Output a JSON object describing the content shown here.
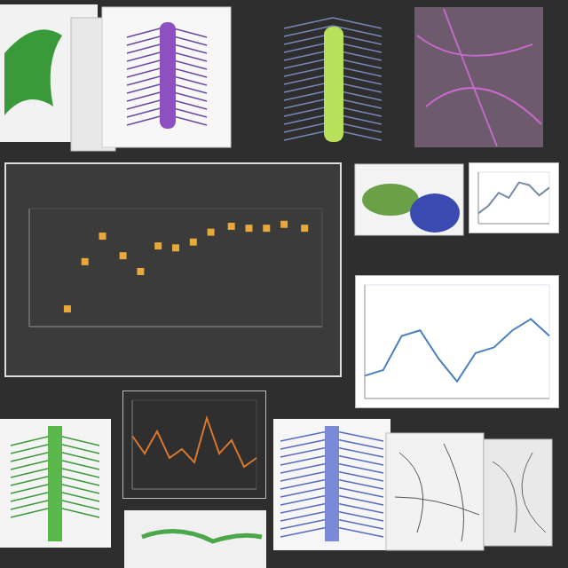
{
  "chart_data": [
    {
      "type": "scatter",
      "x": [
        13,
        19,
        25,
        32,
        38,
        44,
        50,
        56,
        62,
        69,
        75,
        81,
        87,
        94
      ],
      "values": [
        9,
        33,
        46,
        36,
        28,
        41,
        40,
        43,
        48,
        51,
        50,
        50,
        52,
        50
      ],
      "xlim": [
        0,
        100
      ],
      "ylim": [
        0,
        60
      ],
      "xticks": [
        0,
        20,
        40,
        60,
        80,
        100
      ],
      "yticks": [
        0,
        10,
        20,
        30,
        40,
        50,
        60
      ],
      "color": "#e8a93a",
      "grid": true,
      "tick_labels": false
    },
    {
      "type": "line",
      "categories": [
        null,
        null,
        null,
        null,
        null,
        null,
        null,
        null
      ],
      "values": [
        20,
        35,
        60,
        50,
        80,
        75,
        55,
        70
      ],
      "ylim": [
        0,
        100
      ],
      "yticks": [
        0,
        25,
        50,
        75,
        100
      ],
      "color": "#7a8ba8",
      "grid": true,
      "tick_labels": false
    },
    {
      "type": "line",
      "categories": [
        null,
        null,
        null,
        null,
        null,
        null,
        null,
        null,
        null,
        null,
        null
      ],
      "values": [
        20,
        25,
        55,
        60,
        35,
        15,
        40,
        45,
        60,
        70,
        55
      ],
      "ylim": [
        0,
        100
      ],
      "yticks": [
        0,
        20,
        40,
        60,
        80,
        100
      ],
      "color": "#4a7fc0",
      "grid": true,
      "tick_labels": false
    },
    {
      "type": "line",
      "categories": [
        null,
        null,
        null,
        null,
        null,
        null,
        null,
        null,
        null,
        null,
        null
      ],
      "values": [
        60,
        40,
        65,
        35,
        45,
        30,
        80,
        40,
        55,
        25,
        35
      ],
      "ylim": [
        0,
        100
      ],
      "yticks": [
        0,
        25,
        50,
        75,
        100
      ],
      "color": "#d9762f",
      "grid": true,
      "tick_labels": false
    }
  ]
}
